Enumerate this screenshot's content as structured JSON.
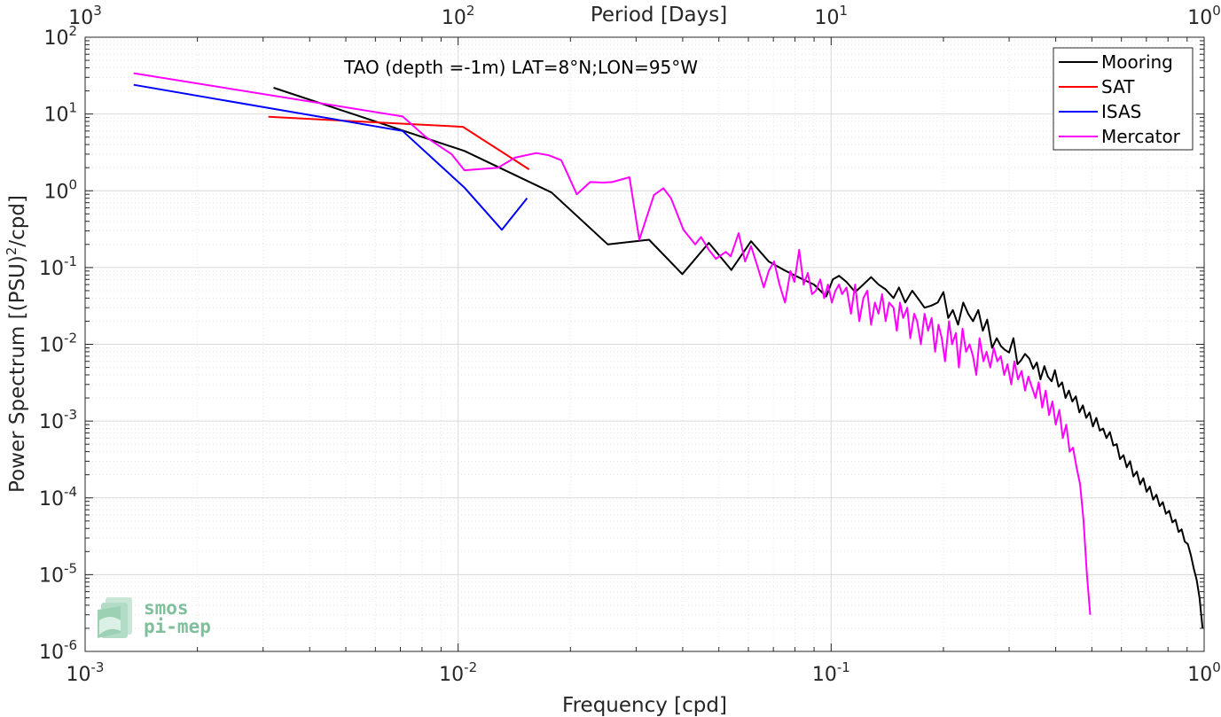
{
  "chart_data": {
    "type": "line",
    "title": "",
    "annotation": "TAO (depth =-1m) LAT=8°N;LON=95°W",
    "xlabel": "Frequency [cpd]",
    "ylabel_main": "Power Spectrum [(PSU)",
    "ylabel_sup": "2",
    "ylabel_tail": "/cpd]",
    "top_xlabel": "Period [Days]",
    "x_scale": "log",
    "y_scale": "log",
    "xlim": [
      0.001,
      1
    ],
    "ylim": [
      1e-06,
      100
    ],
    "grid": true,
    "legend_position": "top-right",
    "x_ticks": [
      {
        "base": "10",
        "exp": "-3",
        "value": 0.001
      },
      {
        "base": "10",
        "exp": "-2",
        "value": 0.01
      },
      {
        "base": "10",
        "exp": "-1",
        "value": 0.1
      },
      {
        "base": "10",
        "exp": "0",
        "value": 1
      }
    ],
    "top_ticks": [
      {
        "base": "10",
        "exp": "3",
        "value": 0.001
      },
      {
        "base": "10",
        "exp": "2",
        "value": 0.01
      },
      {
        "base": "10",
        "exp": "1",
        "value": 0.1
      },
      {
        "base": "10",
        "exp": "0",
        "value": 1
      }
    ],
    "y_ticks": [
      {
        "base": "10",
        "exp": "2",
        "value": 100
      },
      {
        "base": "10",
        "exp": "1",
        "value": 10
      },
      {
        "base": "10",
        "exp": "0",
        "value": 1
      },
      {
        "base": "10",
        "exp": "-1",
        "value": 0.1
      },
      {
        "base": "10",
        "exp": "-2",
        "value": 0.01
      },
      {
        "base": "10",
        "exp": "-3",
        "value": 0.001
      },
      {
        "base": "10",
        "exp": "-4",
        "value": 0.0001
      },
      {
        "base": "10",
        "exp": "-5",
        "value": 1e-05
      },
      {
        "base": "10",
        "exp": "-6",
        "value": 1e-06
      }
    ],
    "series": [
      {
        "name": "Mooring",
        "color": "#000000",
        "x": [
          0.0032,
          0.0104,
          0.0178,
          0.0252,
          0.0325,
          0.0399,
          0.047,
          0.054,
          0.061,
          0.068,
          0.075,
          0.083,
          0.09,
          0.097,
          0.101,
          0.105,
          0.11,
          0.116,
          0.121,
          0.128,
          0.134,
          0.14,
          0.147,
          0.152,
          0.158,
          0.165,
          0.172,
          0.178,
          0.186,
          0.193,
          0.2,
          0.206,
          0.212,
          0.219,
          0.226,
          0.233,
          0.24,
          0.248,
          0.255,
          0.262,
          0.27,
          0.278,
          0.285,
          0.292,
          0.3,
          0.308,
          0.316,
          0.323,
          0.331,
          0.34,
          0.348,
          0.356,
          0.364,
          0.373,
          0.381,
          0.39,
          0.398,
          0.407,
          0.416,
          0.425,
          0.434,
          0.443,
          0.453,
          0.463,
          0.473,
          0.483,
          0.493,
          0.503,
          0.514,
          0.525,
          0.536,
          0.547,
          0.559,
          0.571,
          0.583,
          0.595,
          0.608,
          0.62,
          0.633,
          0.646,
          0.66,
          0.673,
          0.687,
          0.701,
          0.715,
          0.73,
          0.745,
          0.76,
          0.775,
          0.79,
          0.806,
          0.822,
          0.838,
          0.854,
          0.87,
          0.887,
          0.904,
          0.921,
          0.938,
          0.955,
          0.972,
          0.99
        ],
        "y": [
          22,
          3.3,
          0.95,
          0.2,
          0.23,
          0.082,
          0.21,
          0.093,
          0.22,
          0.12,
          0.092,
          0.072,
          0.06,
          0.042,
          0.07,
          0.078,
          0.065,
          0.048,
          0.058,
          0.075,
          0.06,
          0.052,
          0.04,
          0.055,
          0.035,
          0.05,
          0.038,
          0.03,
          0.032,
          0.035,
          0.048,
          0.022,
          0.028,
          0.018,
          0.035,
          0.025,
          0.02,
          0.028,
          0.015,
          0.021,
          0.009,
          0.012,
          0.0095,
          0.0085,
          0.0078,
          0.012,
          0.0055,
          0.0062,
          0.0075,
          0.0065,
          0.0048,
          0.0058,
          0.0035,
          0.0052,
          0.0038,
          0.0033,
          0.0046,
          0.0028,
          0.0032,
          0.002,
          0.0025,
          0.0018,
          0.0021,
          0.0013,
          0.0016,
          0.0011,
          0.0013,
          0.00085,
          0.0011,
          0.00075,
          0.0008,
          0.0006,
          0.00072,
          0.00048,
          0.0005,
          0.00032,
          0.00036,
          0.00025,
          0.0003,
          0.00019,
          0.00022,
          0.00015,
          0.00018,
          0.00012,
          0.00014,
          9.5e-05,
          0.00011,
          7.8e-05,
          8.8e-05,
          6.2e-05,
          6.8e-05,
          4.8e-05,
          5.2e-05,
          3.6e-05,
          3.9e-05,
          2.7e-05,
          2.5e-05,
          1.8e-05,
          1.2e-05,
          8.5e-06,
          5e-06,
          2e-06
        ]
      },
      {
        "name": "SAT",
        "color": "#ff0000",
        "x": [
          0.0031,
          0.0103,
          0.0155
        ],
        "y": [
          9.2,
          6.8,
          1.9
        ]
      },
      {
        "name": "ISAS",
        "color": "#0000ff",
        "x": [
          0.00135,
          0.0071,
          0.0104,
          0.0131,
          0.0153
        ],
        "y": [
          24,
          6.0,
          1.1,
          0.31,
          0.8
        ]
      },
      {
        "name": "Mercator",
        "color": "#ff00ff",
        "x": [
          0.00135,
          0.0071,
          0.0082,
          0.0096,
          0.0104,
          0.0128,
          0.0142,
          0.0162,
          0.0175,
          0.0189,
          0.0208,
          0.0226,
          0.0245,
          0.0259,
          0.0288,
          0.0306,
          0.0335,
          0.0355,
          0.0372,
          0.0402,
          0.0432,
          0.0448,
          0.047,
          0.0491,
          0.0522,
          0.0538,
          0.0565,
          0.0588,
          0.061,
          0.0636,
          0.066,
          0.068,
          0.0703,
          0.0727,
          0.0752,
          0.0778,
          0.0797,
          0.0821,
          0.0844,
          0.0866,
          0.0889,
          0.091,
          0.0935,
          0.0958,
          0.0981,
          0.1004,
          0.1027,
          0.105,
          0.107,
          0.11,
          0.113,
          0.116,
          0.119,
          0.122,
          0.125,
          0.128,
          0.131,
          0.134,
          0.137,
          0.14,
          0.143,
          0.147,
          0.15,
          0.153,
          0.156,
          0.16,
          0.163,
          0.167,
          0.17,
          0.174,
          0.178,
          0.182,
          0.186,
          0.19,
          0.194,
          0.198,
          0.202,
          0.207,
          0.211,
          0.216,
          0.22,
          0.225,
          0.23,
          0.235,
          0.24,
          0.245,
          0.25,
          0.256,
          0.261,
          0.267,
          0.273,
          0.279,
          0.285,
          0.291,
          0.297,
          0.304,
          0.31,
          0.317,
          0.324,
          0.331,
          0.338,
          0.345,
          0.353,
          0.36,
          0.368,
          0.376,
          0.384,
          0.392,
          0.4,
          0.409,
          0.418,
          0.427,
          0.436,
          0.445,
          0.455,
          0.465,
          0.475,
          0.485,
          0.495
        ],
        "y": [
          34,
          9.3,
          5.0,
          3.0,
          1.85,
          2.0,
          2.7,
          3.1,
          2.9,
          2.5,
          0.9,
          1.3,
          1.28,
          1.3,
          1.5,
          0.23,
          0.88,
          1.08,
          0.8,
          0.31,
          0.2,
          0.25,
          0.17,
          0.13,
          0.16,
          0.14,
          0.28,
          0.12,
          0.19,
          0.1,
          0.055,
          0.09,
          0.12,
          0.06,
          0.035,
          0.09,
          0.065,
          0.17,
          0.06,
          0.085,
          0.045,
          0.05,
          0.07,
          0.04,
          0.06,
          0.035,
          0.05,
          0.06,
          0.045,
          0.055,
          0.025,
          0.06,
          0.02,
          0.04,
          0.05,
          0.018,
          0.035,
          0.025,
          0.045,
          0.02,
          0.035,
          0.03,
          0.015,
          0.035,
          0.022,
          0.03,
          0.012,
          0.025,
          0.02,
          0.01,
          0.025,
          0.015,
          0.022,
          0.008,
          0.018,
          0.012,
          0.006,
          0.02,
          0.01,
          0.014,
          0.005,
          0.016,
          0.008,
          0.01,
          0.007,
          0.004,
          0.012,
          0.006,
          0.008,
          0.005,
          0.009,
          0.006,
          0.007,
          0.004,
          0.0055,
          0.003,
          0.006,
          0.0035,
          0.0045,
          0.0025,
          0.0038,
          0.0028,
          0.002,
          0.0032,
          0.0015,
          0.0025,
          0.0012,
          0.0018,
          0.0009,
          0.0014,
          0.0006,
          0.0009,
          0.0004,
          0.00045,
          0.00025,
          0.00015,
          5e-05,
          1e-05,
          3e-06
        ]
      }
    ]
  },
  "logo": {
    "line1": "smos",
    "line2": "pi-mep"
  }
}
